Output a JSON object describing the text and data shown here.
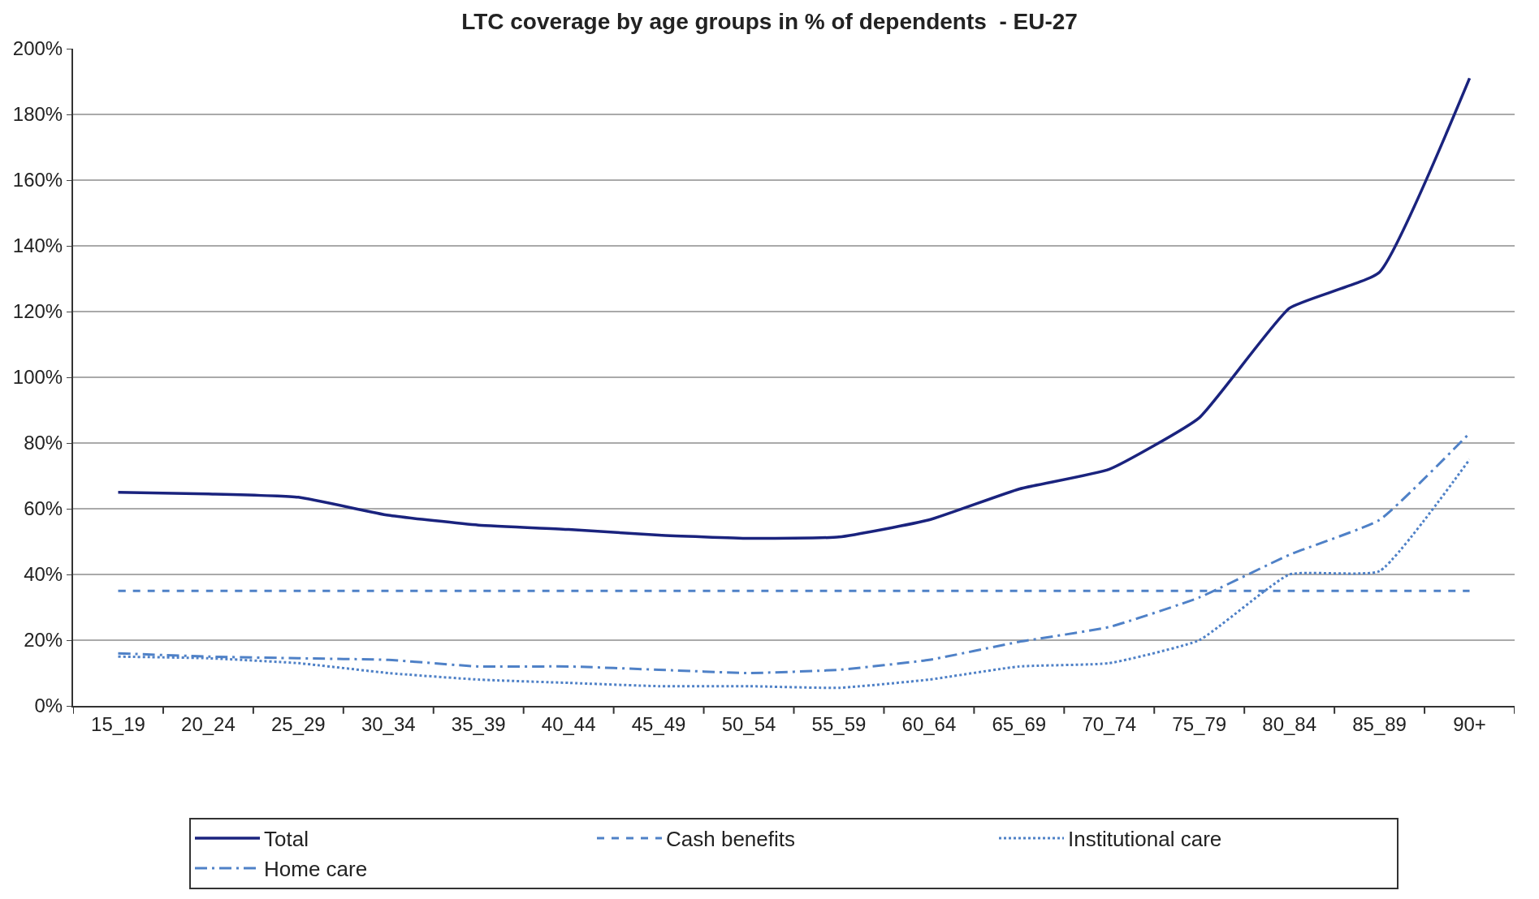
{
  "chart_data": {
    "type": "line",
    "title": "LTC coverage by age groups in % of dependents  - EU-27",
    "categories": [
      "15_19",
      "20_24",
      "25_29",
      "30_34",
      "35_39",
      "40_44",
      "45_49",
      "50_54",
      "55_59",
      "60_64",
      "65_69",
      "70_74",
      "75_79",
      "80_84",
      "85_89",
      "90+"
    ],
    "series": [
      {
        "name": "Total",
        "color": "#1a237e",
        "line_style": "solid",
        "values": [
          65,
          64.5,
          63.5,
          58,
          55,
          53.7,
          52,
          51,
          51.4,
          56.6,
          66,
          72,
          87.7,
          121,
          132,
          191
        ]
      },
      {
        "name": "Cash benefits",
        "color": "#4f81c7",
        "line_style": "dashed",
        "values": [
          35,
          35,
          35,
          35,
          35,
          35,
          35,
          35,
          35,
          35,
          35,
          35,
          35,
          35,
          35,
          35
        ]
      },
      {
        "name": "Institutional care",
        "color": "#4f81c7",
        "line_style": "dotted",
        "values": [
          15,
          14.5,
          13,
          10,
          8,
          7,
          6,
          6,
          5.5,
          8,
          12,
          13,
          20,
          40,
          41,
          75
        ]
      },
      {
        "name": "Home care",
        "color": "#4f81c7",
        "line_style": "dashdot",
        "values": [
          16,
          15,
          14.5,
          14,
          12,
          12,
          11,
          10,
          11,
          14,
          19.5,
          24,
          33,
          46,
          56.6,
          83
        ]
      }
    ],
    "ylim": [
      0,
      200
    ],
    "yticks": [
      {
        "value": 0,
        "label": "0%"
      },
      {
        "value": 20,
        "label": "20%"
      },
      {
        "value": 40,
        "label": "40%"
      },
      {
        "value": 60,
        "label": "60%"
      },
      {
        "value": 80,
        "label": "80%"
      },
      {
        "value": 100,
        "label": "100%"
      },
      {
        "value": 120,
        "label": "120%"
      },
      {
        "value": 140,
        "label": "140%"
      },
      {
        "value": 160,
        "label": "160%"
      },
      {
        "value": 180,
        "label": "180%"
      },
      {
        "value": 200,
        "label": "200%"
      }
    ],
    "grid": "y",
    "legend": "bottom",
    "marker": "none"
  }
}
